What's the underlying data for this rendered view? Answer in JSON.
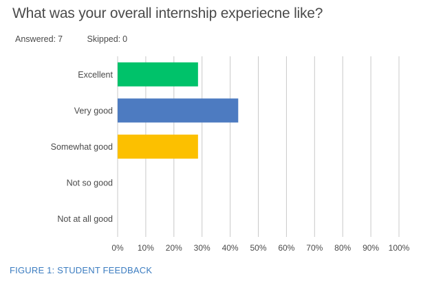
{
  "header": {
    "title": "What was your overall internship experiecne like?",
    "answered_label": "Answered:",
    "answered_count": "7",
    "skipped_label": "Skipped:",
    "skipped_count": "0"
  },
  "caption": "FIGURE 1: STUDENT FEEDBACK",
  "chart_data": {
    "type": "bar",
    "orientation": "horizontal",
    "categories": [
      "Excellent",
      "Very good",
      "Somewhat good",
      "Not so good",
      "Not at all good"
    ],
    "values": [
      28.57,
      42.86,
      28.57,
      0,
      0
    ],
    "unit": "%",
    "xlim": [
      0,
      100
    ],
    "xticks": [
      "0%",
      "10%",
      "20%",
      "30%",
      "40%",
      "50%",
      "60%",
      "70%",
      "80%",
      "90%",
      "100%"
    ],
    "bar_colors": [
      "#00c26a",
      "#4d7bc1",
      "#fcc000",
      "#cccccc",
      "#cccccc"
    ],
    "grid": true
  }
}
